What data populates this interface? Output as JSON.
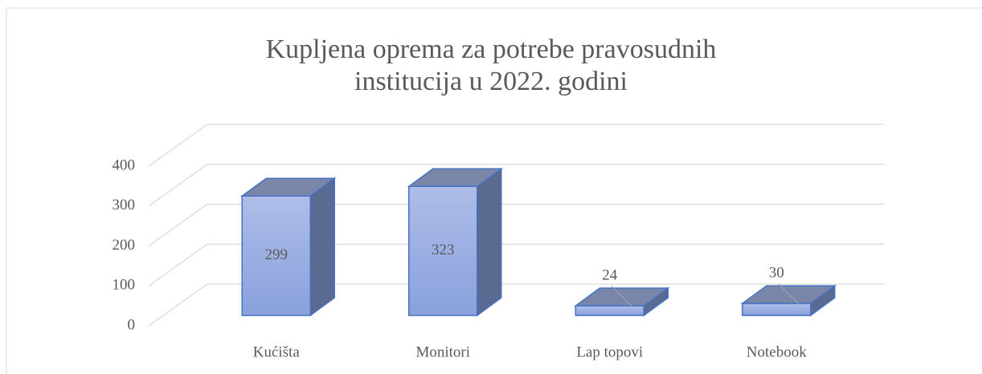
{
  "chart_data": {
    "type": "bar3d",
    "title": "Kupljena oprema za potrebe pravosudnih institucija u 2022. godini",
    "categories": [
      "Kućišta",
      "Monitori",
      "Lap topovi",
      "Notebook"
    ],
    "values": [
      299,
      323,
      24,
      30
    ],
    "color": "#8faadc",
    "ylim": [
      0,
      400
    ],
    "yticks": [
      0,
      100,
      200,
      300,
      400
    ],
    "grid": true
  }
}
